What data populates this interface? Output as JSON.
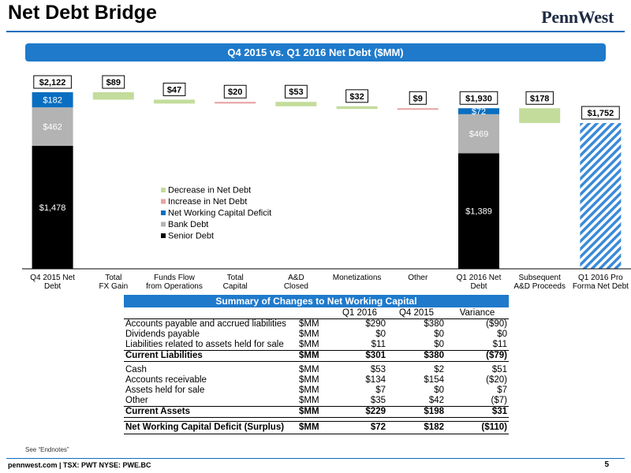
{
  "header": {
    "title": "Net Debt Bridge",
    "logo_text": "PennWest",
    "banner": "Q4 2015 vs. Q1 2016 Net Debt ($MM)"
  },
  "colors": {
    "accent": "#1f7acb",
    "decrease": "#c3dc9b",
    "increase": "#e9a1a1",
    "working_capital": "#0a6ec0",
    "bank_debt": "#b3b3b3",
    "senior_debt": "#000000",
    "pro_forma_hatch": "#3a8ad8"
  },
  "chart_data": {
    "type": "bar",
    "subtype": "waterfall",
    "categories": [
      "Q4 2015 Net\nDebt",
      "Total\nFX Gain",
      "Funds Flow\nfrom Operations",
      "Total\nCapital",
      "A&D\nClosed",
      "Monetizations",
      "Other",
      "Q1 2016 Net\nDebt",
      "Subsequent\nA&D Proceeds",
      "Q1 2016 Pro\nForma Net Debt"
    ],
    "bars": [
      {
        "kind": "stack",
        "segments": [
          {
            "series": "Senior Debt",
            "value": 1478,
            "label": "$1,478"
          },
          {
            "series": "Bank Debt",
            "value": 462,
            "label": "$462"
          },
          {
            "series": "Net Working Capital Deficit",
            "value": 182,
            "label": "$182"
          }
        ],
        "total": 2122,
        "total_label": "$2,122"
      },
      {
        "kind": "float",
        "series": "Decrease in Net Debt",
        "from": 2122,
        "to": 2033,
        "label": "$89"
      },
      {
        "kind": "float",
        "series": "Decrease in Net Debt",
        "from": 2033,
        "to": 1986,
        "label": "$47"
      },
      {
        "kind": "float",
        "series": "Increase in Net Debt",
        "from": 1986,
        "to": 2006,
        "label": "$20"
      },
      {
        "kind": "float",
        "series": "Decrease in Net Debt",
        "from": 2006,
        "to": 1953,
        "label": "$53"
      },
      {
        "kind": "float",
        "series": "Decrease in Net Debt",
        "from": 1953,
        "to": 1921,
        "label": "$32"
      },
      {
        "kind": "float",
        "series": "Increase in Net Debt",
        "from": 1921,
        "to": 1930,
        "label": "$9"
      },
      {
        "kind": "stack",
        "segments": [
          {
            "series": "Senior Debt",
            "value": 1389,
            "label": "$1,389"
          },
          {
            "series": "Bank Debt",
            "value": 469,
            "label": "$469"
          },
          {
            "series": "Net Working Capital Deficit",
            "value": 72,
            "label": "$72"
          }
        ],
        "total": 1930,
        "total_label": "$1,930"
      },
      {
        "kind": "float",
        "series": "Decrease in Net Debt",
        "from": 1930,
        "to": 1752,
        "label": "$178"
      },
      {
        "kind": "hatched",
        "value": 1752,
        "label": "$1,752"
      }
    ],
    "legend": [
      {
        "name": "Decrease in Net Debt",
        "color": "#c3dc9b"
      },
      {
        "name": "Increase in Net Debt",
        "color": "#e9a1a1"
      },
      {
        "name": "Net Working Capital Deficit",
        "color": "#0a6ec0"
      },
      {
        "name": "Bank Debt",
        "color": "#b3b3b3"
      },
      {
        "name": "Senior Debt",
        "color": "#000000"
      }
    ],
    "legend_position": "center",
    "ylim": [
      0,
      2122
    ],
    "grid": false
  },
  "table": {
    "title": "Summary of Changes to Net Working Capital",
    "columns": [
      "",
      "",
      "Q1 2016",
      "Q4 2015",
      "Variance"
    ],
    "liabilities": [
      {
        "label": "Accounts payable and accrued liabilities",
        "unit": "$MM",
        "q1": "$290",
        "q4": "$380",
        "var": "($90)"
      },
      {
        "label": "Dividends payable",
        "unit": "$MM",
        "q1": "$0",
        "q4": "$0",
        "var": "$0"
      },
      {
        "label": "Liabilities related to assets held for sale",
        "unit": "$MM",
        "q1": "$11",
        "q4": "$0",
        "var": "$11"
      }
    ],
    "current_liabilities": {
      "label": "Current Liabilities",
      "unit": "$MM",
      "q1": "$301",
      "q4": "$380",
      "var": "($79)"
    },
    "assets": [
      {
        "label": "Cash",
        "unit": "$MM",
        "q1": "$53",
        "q4": "$2",
        "var": "$51"
      },
      {
        "label": "Accounts receivable",
        "unit": "$MM",
        "q1": "$134",
        "q4": "$154",
        "var": "($20)"
      },
      {
        "label": "Assets held for sale",
        "unit": "$MM",
        "q1": "$7",
        "q4": "$0",
        "var": "$7"
      },
      {
        "label": "Other",
        "unit": "$MM",
        "q1": "$35",
        "q4": "$42",
        "var": "($7)"
      }
    ],
    "current_assets": {
      "label": "Current Assets",
      "unit": "$MM",
      "q1": "$229",
      "q4": "$198",
      "var": "$31"
    },
    "total": {
      "label": "Net Working Capital Deficit (Surplus)",
      "unit": "$MM",
      "q1": "$72",
      "q4": "$182",
      "var": "($110)"
    }
  },
  "footer": {
    "endnote": "See “Endnotes”",
    "text": "pennwest.com | TSX: PWT  NYSE: PWE.BC",
    "page": "5"
  }
}
